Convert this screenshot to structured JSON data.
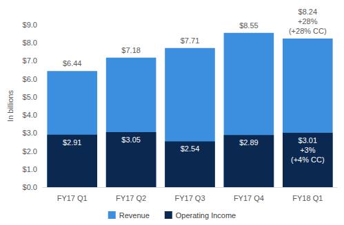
{
  "chart_data": {
    "type": "bar",
    "y_label": "In billions",
    "categories": [
      "FY17 Q1",
      "FY17 Q2",
      "FY17 Q3",
      "FY17 Q4",
      "FY18 Q1"
    ],
    "series": [
      {
        "name": "Revenue",
        "color": "#3c8fde",
        "values": [
          6.44,
          7.18,
          7.71,
          8.55,
          8.24
        ],
        "value_labels": [
          "$6.44",
          "$7.18",
          "$7.71",
          "$8.55",
          "$8.24"
        ]
      },
      {
        "name": "Operating Income",
        "color": "#0b2850",
        "values": [
          2.91,
          3.05,
          2.54,
          2.89,
          3.01
        ],
        "value_labels": [
          "$2.91",
          "$3.05",
          "$2.54",
          "$2.89",
          "$3.01"
        ]
      }
    ],
    "annotations": [
      {
        "series": "Revenue",
        "category": "FY18 Q1",
        "text": [
          "+28%",
          "(+28% CC)"
        ]
      },
      {
        "series": "Operating Income",
        "category": "FY18 Q1",
        "text": [
          "+3%",
          "(+4% CC)"
        ]
      }
    ],
    "ylim": [
      0,
      9
    ],
    "yticks": [
      {
        "value": 0,
        "label": "$0.0"
      },
      {
        "value": 1,
        "label": "$1.0"
      },
      {
        "value": 2,
        "label": "$2.0"
      },
      {
        "value": 3,
        "label": "$3.0"
      },
      {
        "value": 4,
        "label": "$4.0"
      },
      {
        "value": 5,
        "label": "$5.0"
      },
      {
        "value": 6,
        "label": "$6.0"
      },
      {
        "value": 7,
        "label": "$7.0"
      },
      {
        "value": 8,
        "label": "$8.0"
      },
      {
        "value": 9,
        "label": "$9.0"
      }
    ],
    "stacked": false,
    "data_labels": true,
    "grid": false,
    "legend": "bottom"
  }
}
